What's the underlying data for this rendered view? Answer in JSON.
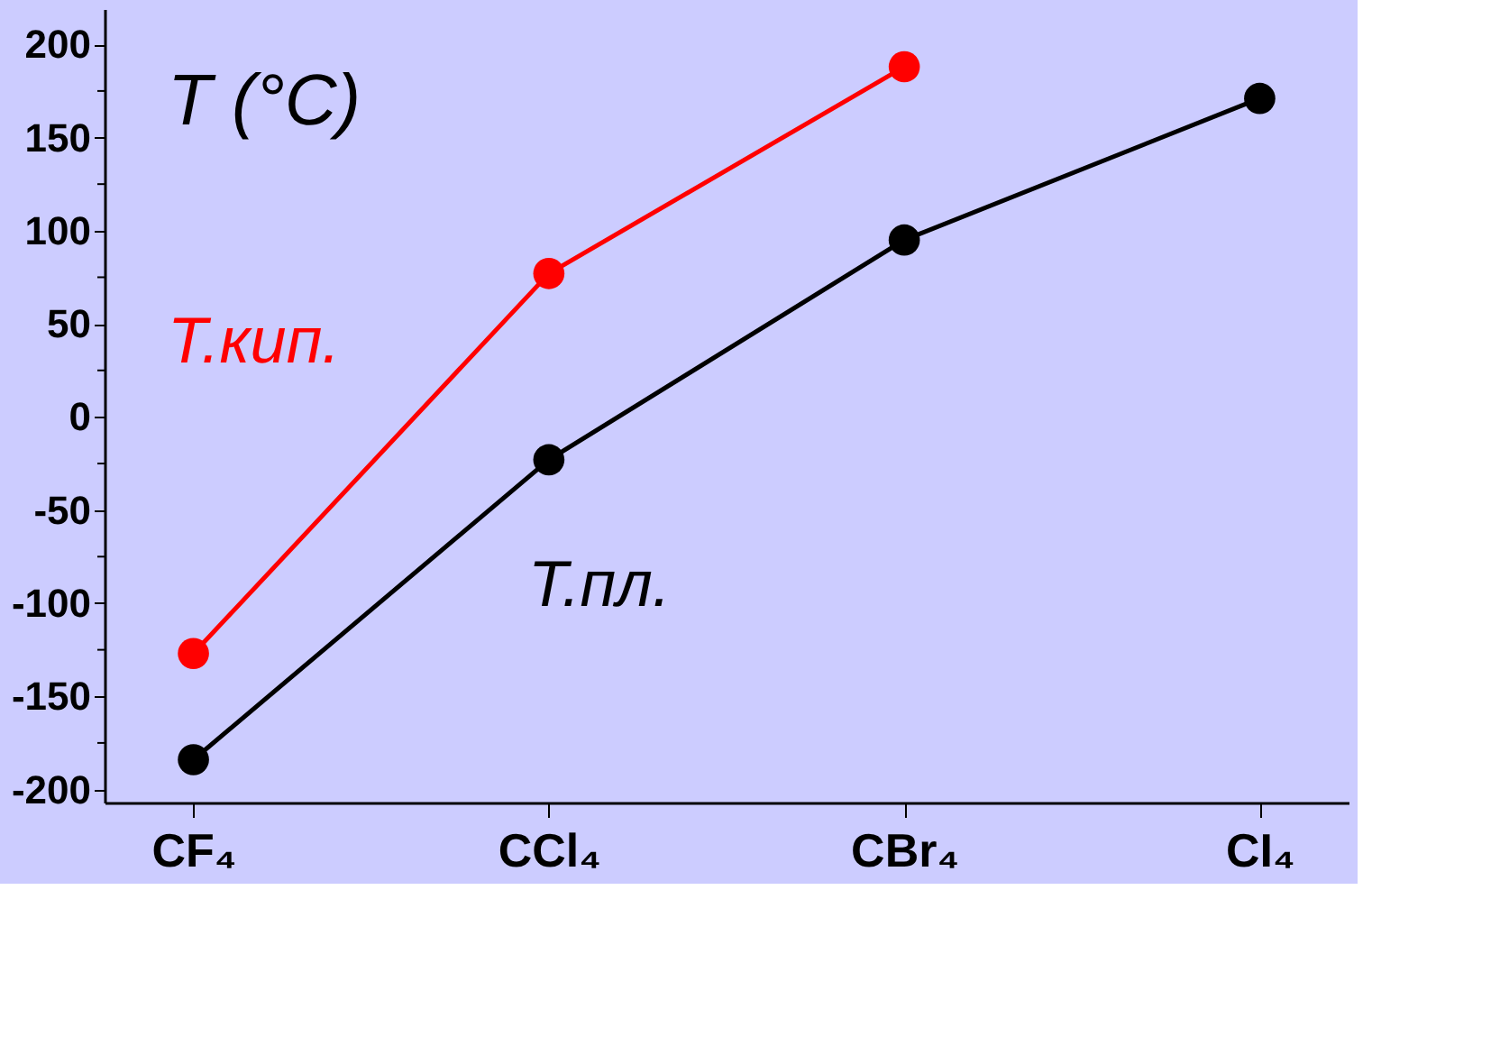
{
  "chart_data": {
    "type": "line",
    "categories": [
      "CF₄",
      "CCl₄",
      "CBr₄",
      "CI₄"
    ],
    "series": [
      {
        "name": "Т.кип.",
        "color": "#ff0000",
        "values": [
          -127,
          77,
          188,
          null
        ]
      },
      {
        "name": "Т.пл.",
        "color": "#000000",
        "values": [
          -184,
          -23,
          95,
          171
        ]
      }
    ],
    "ylim": [
      -207,
      219
    ],
    "yticks": [
      -200,
      {
        "value": -175,
        "label": null
      },
      -150,
      {
        "value": -125,
        "label": null
      },
      -100,
      {
        "value": -75,
        "label": null
      },
      -50,
      {
        "value": -25,
        "label": null
      },
      0,
      {
        "value": 25,
        "label": null
      },
      50,
      {
        "value": 75,
        "label": null
      },
      100,
      {
        "value": 125,
        "label": null
      },
      150,
      {
        "value": 175,
        "label": null
      },
      200
    ],
    "annotations": [
      "T (°C)"
    ],
    "grid": false,
    "marker": "circle",
    "line_style": "solid"
  }
}
